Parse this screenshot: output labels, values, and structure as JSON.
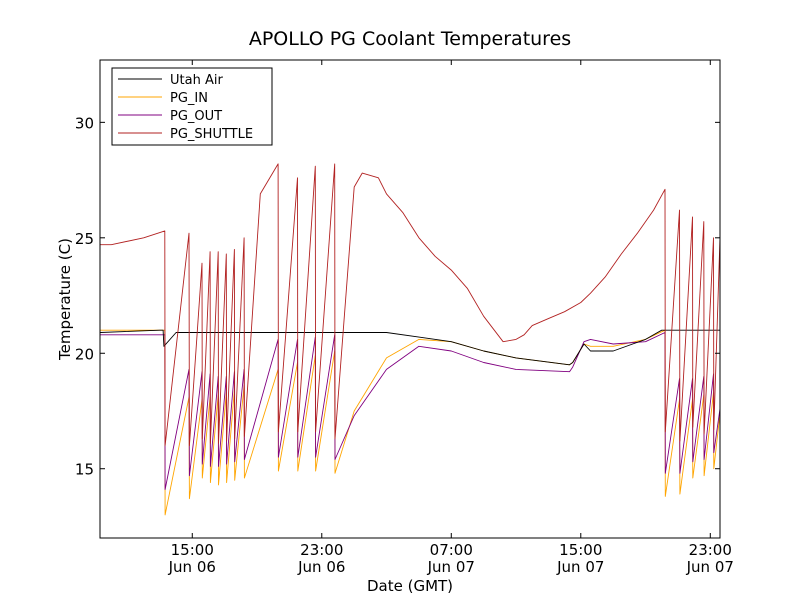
{
  "chart_data": {
    "type": "line",
    "title": "APOLLO PG Coolant Temperatures",
    "xlabel": "Date (GMT)",
    "ylabel": "Temperature (C)",
    "x_unit": "hours since Jun 06 00:00 GMT",
    "xlim": [
      9.3,
      47.6
    ],
    "ylim": [
      12,
      32.7
    ],
    "grid": false,
    "legend_position": "top-left",
    "yticks": [
      {
        "value": 15,
        "label": "15"
      },
      {
        "value": 20,
        "label": "20"
      },
      {
        "value": 25,
        "label": "25"
      },
      {
        "value": 30,
        "label": "30"
      }
    ],
    "xticks": [
      {
        "value": 15,
        "time": "15:00",
        "date": "Jun 06"
      },
      {
        "value": 23,
        "time": "23:00",
        "date": "Jun 06"
      },
      {
        "value": 31,
        "time": "07:00",
        "date": "Jun 07"
      },
      {
        "value": 39,
        "time": "15:00",
        "date": "Jun 07"
      },
      {
        "value": 47,
        "time": "23:00",
        "date": "Jun 07"
      }
    ],
    "cycles": [
      13.3,
      14.8,
      15.6,
      16.1,
      16.6,
      17.1,
      17.6,
      18.2,
      20.3,
      21.5,
      22.6,
      23.8,
      44.2,
      45.1,
      45.9,
      46.6,
      47.2
    ],
    "series": [
      {
        "name": "Utah Air",
        "color": "#000000",
        "values": [
          [
            9.3,
            20.9
          ],
          [
            13.0,
            21.0
          ],
          [
            13.2,
            21.0
          ],
          [
            13.25,
            20.3
          ],
          [
            14.0,
            20.9
          ],
          [
            19.0,
            20.9
          ],
          [
            23.0,
            20.9
          ],
          [
            27.0,
            20.9
          ],
          [
            29.0,
            20.7
          ],
          [
            31.0,
            20.5
          ],
          [
            33.0,
            20.1
          ],
          [
            35.0,
            19.8
          ],
          [
            38.3,
            19.5
          ],
          [
            38.5,
            19.6
          ],
          [
            39.2,
            20.4
          ],
          [
            39.6,
            20.1
          ],
          [
            41.0,
            20.1
          ],
          [
            43.0,
            20.6
          ],
          [
            44.0,
            21.0
          ],
          [
            47.6,
            21.0
          ]
        ]
      },
      {
        "name": "PG_IN",
        "color": "#ffa500",
        "values": [
          [
            9.3,
            21.0
          ],
          [
            13.3,
            21.0
          ],
          [
            13.32,
            13.0
          ],
          [
            14.8,
            18.1
          ],
          [
            14.82,
            13.7
          ],
          [
            15.6,
            18.0
          ],
          [
            15.62,
            14.6
          ],
          [
            16.1,
            18.1
          ],
          [
            16.12,
            14.4
          ],
          [
            16.6,
            18.2
          ],
          [
            16.62,
            14.3
          ],
          [
            17.1,
            18.3
          ],
          [
            17.12,
            14.4
          ],
          [
            17.6,
            18.4
          ],
          [
            17.62,
            14.5
          ],
          [
            18.2,
            18.6
          ],
          [
            18.22,
            14.6
          ],
          [
            20.3,
            19.3
          ],
          [
            20.32,
            14.9
          ],
          [
            21.5,
            19.6
          ],
          [
            21.52,
            14.9
          ],
          [
            22.6,
            19.9
          ],
          [
            22.62,
            14.9
          ],
          [
            23.8,
            20.1
          ],
          [
            23.82,
            14.8
          ],
          [
            25.0,
            17.5
          ],
          [
            27.0,
            19.8
          ],
          [
            29.0,
            20.6
          ],
          [
            31.0,
            20.5
          ],
          [
            33.0,
            20.1
          ],
          [
            35.0,
            19.8
          ],
          [
            38.3,
            19.5
          ],
          [
            38.5,
            19.6
          ],
          [
            39.2,
            20.4
          ],
          [
            39.6,
            20.3
          ],
          [
            41.0,
            20.3
          ],
          [
            43.0,
            20.6
          ],
          [
            44.2,
            21.0
          ],
          [
            44.22,
            13.8
          ],
          [
            45.1,
            18.0
          ],
          [
            45.12,
            13.9
          ],
          [
            45.9,
            18.0
          ],
          [
            45.92,
            14.6
          ],
          [
            46.6,
            18.2
          ],
          [
            46.62,
            14.7
          ],
          [
            47.2,
            18.3
          ],
          [
            47.22,
            15.0
          ],
          [
            47.6,
            17.4
          ]
        ]
      },
      {
        "name": "PG_OUT",
        "color": "#800080",
        "values": [
          [
            9.3,
            20.8
          ],
          [
            13.3,
            20.8
          ],
          [
            13.32,
            14.1
          ],
          [
            14.8,
            19.3
          ],
          [
            14.82,
            14.7
          ],
          [
            15.6,
            19.2
          ],
          [
            15.62,
            15.2
          ],
          [
            16.1,
            19.1
          ],
          [
            16.12,
            15.1
          ],
          [
            16.6,
            19.0
          ],
          [
            16.62,
            15.1
          ],
          [
            17.1,
            19.0
          ],
          [
            17.12,
            15.2
          ],
          [
            17.6,
            19.2
          ],
          [
            17.62,
            15.3
          ],
          [
            18.2,
            19.3
          ],
          [
            18.22,
            15.4
          ],
          [
            20.3,
            20.6
          ],
          [
            20.32,
            15.5
          ],
          [
            21.5,
            20.6
          ],
          [
            21.52,
            15.5
          ],
          [
            22.6,
            20.7
          ],
          [
            22.62,
            15.5
          ],
          [
            23.8,
            20.8
          ],
          [
            23.82,
            15.4
          ],
          [
            25.0,
            17.3
          ],
          [
            27.0,
            19.3
          ],
          [
            29.0,
            20.3
          ],
          [
            31.0,
            20.1
          ],
          [
            33.0,
            19.6
          ],
          [
            35.0,
            19.3
          ],
          [
            38.3,
            19.2
          ],
          [
            38.5,
            19.4
          ],
          [
            39.2,
            20.5
          ],
          [
            39.6,
            20.6
          ],
          [
            41.0,
            20.4
          ],
          [
            43.0,
            20.5
          ],
          [
            44.2,
            20.9
          ],
          [
            44.22,
            14.8
          ],
          [
            45.1,
            18.9
          ],
          [
            45.12,
            14.8
          ],
          [
            45.9,
            18.9
          ],
          [
            45.92,
            15.3
          ],
          [
            46.6,
            19.0
          ],
          [
            46.62,
            15.4
          ],
          [
            47.2,
            19.1
          ],
          [
            47.22,
            15.7
          ],
          [
            47.6,
            17.6
          ]
        ]
      },
      {
        "name": "PG_SHUTTLE",
        "color": "#b22222",
        "values": [
          [
            9.3,
            24.7
          ],
          [
            10.0,
            24.7
          ],
          [
            12.0,
            25.0
          ],
          [
            13.3,
            25.3
          ],
          [
            13.32,
            16.0
          ],
          [
            14.8,
            25.2
          ],
          [
            14.82,
            16.0
          ],
          [
            15.6,
            23.9
          ],
          [
            15.62,
            16.3
          ],
          [
            16.1,
            24.4
          ],
          [
            16.12,
            16.1
          ],
          [
            16.6,
            24.4
          ],
          [
            16.62,
            16.1
          ],
          [
            17.1,
            24.3
          ],
          [
            17.12,
            16.2
          ],
          [
            17.6,
            24.5
          ],
          [
            17.62,
            16.3
          ],
          [
            18.2,
            25.0
          ],
          [
            18.22,
            16.4
          ],
          [
            19.2,
            26.9
          ],
          [
            20.3,
            28.2
          ],
          [
            20.32,
            16.6
          ],
          [
            21.5,
            27.6
          ],
          [
            21.52,
            16.6
          ],
          [
            22.6,
            28.1
          ],
          [
            22.62,
            16.6
          ],
          [
            23.8,
            28.2
          ],
          [
            23.82,
            16.3
          ],
          [
            25.0,
            27.2
          ],
          [
            25.5,
            27.8
          ],
          [
            26.5,
            27.6
          ],
          [
            27.0,
            26.9
          ],
          [
            28.0,
            26.1
          ],
          [
            29.0,
            25.0
          ],
          [
            30.0,
            24.2
          ],
          [
            31.0,
            23.6
          ],
          [
            32.0,
            22.8
          ],
          [
            33.0,
            21.6
          ],
          [
            34.2,
            20.5
          ],
          [
            35.0,
            20.6
          ],
          [
            35.5,
            20.8
          ],
          [
            36.0,
            21.2
          ],
          [
            37.0,
            21.5
          ],
          [
            38.0,
            21.8
          ],
          [
            39.0,
            22.2
          ],
          [
            39.6,
            22.6
          ],
          [
            40.5,
            23.3
          ],
          [
            41.5,
            24.3
          ],
          [
            42.5,
            25.2
          ],
          [
            43.5,
            26.2
          ],
          [
            44.2,
            27.1
          ],
          [
            44.22,
            16.6
          ],
          [
            45.1,
            26.2
          ],
          [
            45.12,
            16.2
          ],
          [
            45.9,
            25.9
          ],
          [
            45.92,
            16.8
          ],
          [
            46.6,
            25.7
          ],
          [
            46.62,
            16.5
          ],
          [
            47.2,
            25.0
          ],
          [
            47.22,
            16.7
          ],
          [
            47.6,
            25.0
          ]
        ]
      }
    ]
  }
}
